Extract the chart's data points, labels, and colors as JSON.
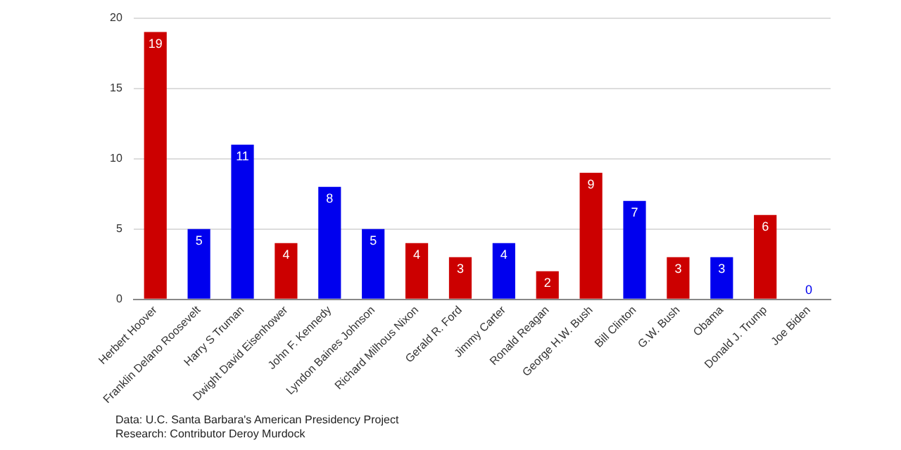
{
  "chart_data": {
    "type": "bar",
    "categories": [
      "Herbert Hoover",
      "Franklin Delano Roosevelt",
      "Harry S Truman",
      "Dwight David Eisenhower",
      "John F. Kennedy",
      "Lyndon Baines Johnson",
      "Richard Milhous Nixon",
      "Gerald R. Ford",
      "Jimmy Carter",
      "Ronald Reagan",
      "George H.W. Bush",
      "Bill Clinton",
      "G.W. Bush",
      "Obama",
      "Donald J. Trump",
      "Joe Biden"
    ],
    "values": [
      19,
      5,
      11,
      4,
      8,
      5,
      4,
      3,
      4,
      2,
      9,
      7,
      3,
      3,
      6,
      0
    ],
    "colors": [
      "#cc0000",
      "#0000ee",
      "#0000ee",
      "#cc0000",
      "#0000ee",
      "#0000ee",
      "#cc0000",
      "#cc0000",
      "#0000ee",
      "#cc0000",
      "#cc0000",
      "#0000ee",
      "#cc0000",
      "#0000ee",
      "#cc0000",
      "#0000ee"
    ],
    "ylim": [
      0,
      20
    ],
    "yticks": [
      0,
      5,
      10,
      15,
      20
    ],
    "grid": "y",
    "data_labels": true,
    "annotations": [
      "Data: U.C. Santa Barbara's American Presidency Project",
      "Research: Contributor Deroy Murdock"
    ]
  }
}
